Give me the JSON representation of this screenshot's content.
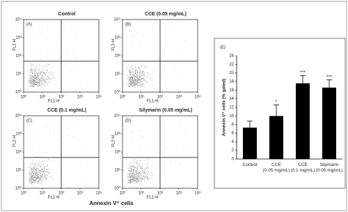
{
  "figure_xlabel": "Annexin V⁺ cells",
  "chart_data": [
    {
      "type": "scatter",
      "title": "Control",
      "panel": "(A)",
      "xlabel": "FL1-H",
      "ylabel": "FL2-H",
      "log_scale": true,
      "xlim": [
        1,
        10000
      ],
      "ylim": [
        1,
        10000
      ],
      "xticks": [
        {
          "value": 1,
          "label": "10⁰"
        },
        {
          "value": 10,
          "label": "10¹"
        },
        {
          "value": 100,
          "label": "10²"
        },
        {
          "value": 1000,
          "label": "10³"
        },
        {
          "value": 10000,
          "label": "10⁴"
        }
      ],
      "yticks": [
        {
          "value": 1,
          "label": "10⁰"
        },
        {
          "value": 10,
          "label": "10¹"
        },
        {
          "value": 100,
          "label": "10²"
        },
        {
          "value": 1000,
          "label": "10³"
        },
        {
          "value": 10000,
          "label": "10⁴"
        }
      ],
      "quadrant": {
        "x": 100,
        "y": 50
      }
    },
    {
      "type": "scatter",
      "title": "CCE (0.05 mg/mL)",
      "panel": "(B)",
      "xlabel": "FL1-H",
      "ylabel": "FL2-H",
      "log_scale": true,
      "xlim": [
        1,
        10000
      ],
      "ylim": [
        1,
        10000
      ],
      "xticks": [
        {
          "value": 1,
          "label": "10⁰"
        },
        {
          "value": 10,
          "label": "10¹"
        },
        {
          "value": 100,
          "label": "10²"
        },
        {
          "value": 1000,
          "label": "10³"
        },
        {
          "value": 10000,
          "label": "10⁴"
        }
      ],
      "yticks": [
        {
          "value": 1,
          "label": "10⁰"
        },
        {
          "value": 10,
          "label": "10¹"
        },
        {
          "value": 100,
          "label": "10²"
        },
        {
          "value": 1000,
          "label": "10³"
        },
        {
          "value": 10000,
          "label": "10⁴"
        }
      ],
      "quadrant": {
        "x": 100,
        "y": 50
      }
    },
    {
      "type": "scatter",
      "title": "CCE (0.1 mg/mL)",
      "panel": "(C)",
      "xlabel": "FL1-H",
      "ylabel": "FL2-H",
      "log_scale": true,
      "xlim": [
        1,
        10000
      ],
      "ylim": [
        1,
        10000
      ],
      "xticks": [
        {
          "value": 1,
          "label": "10⁰"
        },
        {
          "value": 10,
          "label": "10¹"
        },
        {
          "value": 100,
          "label": "10²"
        },
        {
          "value": 1000,
          "label": "10³"
        },
        {
          "value": 10000,
          "label": "10⁴"
        }
      ],
      "yticks": [
        {
          "value": 1,
          "label": "10⁰"
        },
        {
          "value": 10,
          "label": "10¹"
        },
        {
          "value": 100,
          "label": "10²"
        },
        {
          "value": 1000,
          "label": "10³"
        },
        {
          "value": 10000,
          "label": "10⁴"
        }
      ],
      "quadrant": {
        "x": 100,
        "y": 50
      }
    },
    {
      "type": "scatter",
      "title": "Silymarin (0.05 mg/mL)",
      "panel": "(D)",
      "xlabel": "FL1-H",
      "ylabel": "FL2-H",
      "log_scale": true,
      "xlim": [
        1,
        10000
      ],
      "ylim": [
        1,
        10000
      ],
      "xticks": [
        {
          "value": 1,
          "label": "10⁰"
        },
        {
          "value": 10,
          "label": "10¹"
        },
        {
          "value": 100,
          "label": "10²"
        },
        {
          "value": 1000,
          "label": "10³"
        },
        {
          "value": 10000,
          "label": "10⁴"
        }
      ],
      "yticks": [
        {
          "value": 1,
          "label": "10⁰"
        },
        {
          "value": 10,
          "label": "10¹"
        },
        {
          "value": 100,
          "label": "10²"
        },
        {
          "value": 1000,
          "label": "10³"
        },
        {
          "value": 10000,
          "label": "10⁴"
        }
      ],
      "quadrant": {
        "x": 100,
        "y": 50
      }
    },
    {
      "type": "bar",
      "panel": "(E)",
      "ylabel": "Annexin V⁺ cells (% gated)",
      "categories": [
        "Control",
        "CCE\n(0.05 mg/mL)",
        "CCE\n(0.1 mg/mL)",
        "Silymarin\n(0.05 mg/mL)"
      ],
      "values": [
        7.3,
        10,
        17.6,
        16.6
      ],
      "errors": [
        1.5,
        2.6,
        1.8,
        1.8
      ],
      "color": "#000000",
      "significance": [
        null,
        "*",
        "***",
        "***"
      ],
      "ylim": [
        0,
        24
      ],
      "yticks": [
        0,
        2,
        4,
        6,
        8,
        10,
        12,
        14,
        16,
        18,
        20,
        22,
        24
      ]
    }
  ]
}
